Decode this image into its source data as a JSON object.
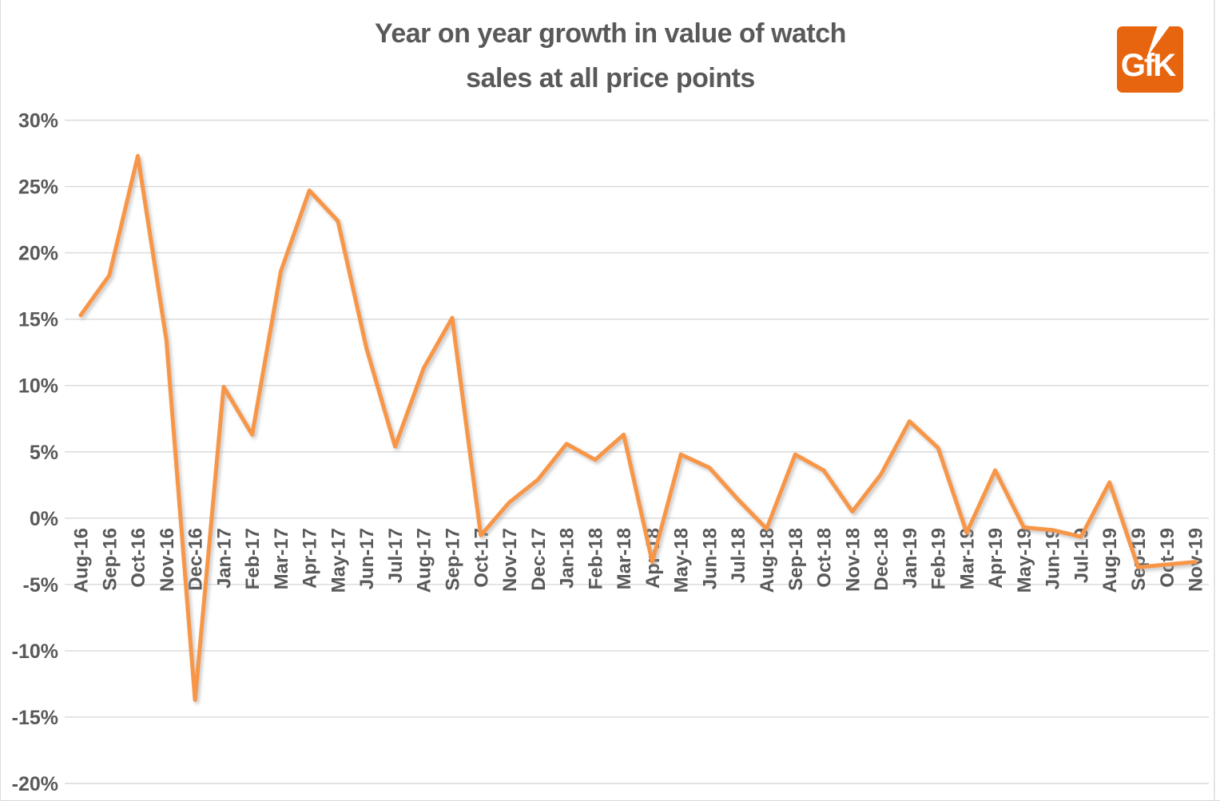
{
  "title_line1": "Year on year growth in value of watch",
  "title_line2": "sales at all price points",
  "logo": {
    "text": "GfK"
  },
  "colors": {
    "line": "#F79646",
    "grid": "#D9D9D9",
    "text": "#595959",
    "logo_bg": "#E8650F"
  },
  "chart_data": {
    "type": "line",
    "title": "Year on year growth in value of watch sales at all price points",
    "xlabel": "",
    "ylabel": "",
    "ylim": [
      -20,
      30
    ],
    "ytick_step": 5,
    "grid": "horizontal",
    "legend": "none",
    "y_tick_labels": [
      "30%",
      "25%",
      "20%",
      "15%",
      "10%",
      "5%",
      "0%",
      "-5%",
      "-10%",
      "-15%",
      "-20%"
    ],
    "categories": [
      "Aug-16",
      "Sep-16",
      "Oct-16",
      "Nov-16",
      "Dec-16",
      "Jan-17",
      "Feb-17",
      "Mar-17",
      "Apr-17",
      "May-17",
      "Jun-17",
      "Jul-17",
      "Aug-17",
      "Sep-17",
      "Oct-17",
      "Nov-17",
      "Dec-17",
      "Jan-18",
      "Feb-18",
      "Mar-18",
      "Apr-18",
      "May-18",
      "Jun-18",
      "Jul-18",
      "Aug-18",
      "Sep-18",
      "Oct-18",
      "Nov-18",
      "Dec-18",
      "Jan-19",
      "Feb-19",
      "Mar-19",
      "Apr-19",
      "May-19",
      "Jun-19",
      "Jul-19",
      "Aug-19",
      "Sep-19",
      "Oct-19",
      "Nov-19"
    ],
    "series": [
      {
        "name": "YoY growth in value of watch sales (%)",
        "values": [
          15.3,
          18.3,
          27.3,
          13.4,
          -13.7,
          9.9,
          6.3,
          18.6,
          24.7,
          22.4,
          12.8,
          5.4,
          11.3,
          15.1,
          -1.3,
          1.2,
          2.9,
          5.6,
          4.4,
          6.3,
          -3.3,
          4.8,
          3.8,
          1.4,
          -0.8,
          4.8,
          3.6,
          0.5,
          3.3,
          7.3,
          5.3,
          -1.1,
          3.6,
          -0.7,
          -0.9,
          -1.4,
          2.7,
          -3.7,
          -3.5,
          -3.3
        ]
      }
    ]
  }
}
